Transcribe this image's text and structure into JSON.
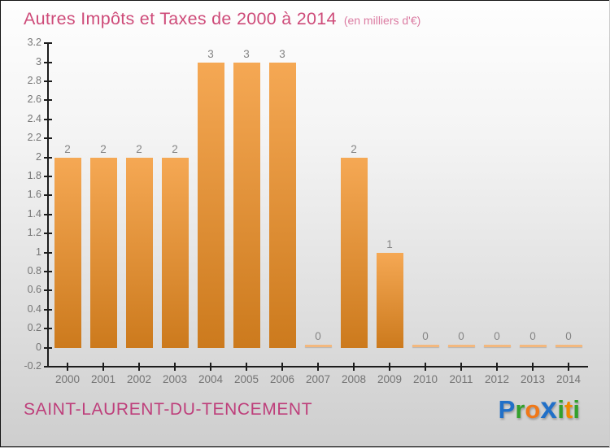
{
  "title": "Autres Impôts et Taxes de 2000 à 2014",
  "subtitle": "(en milliers d'€)",
  "chart_data": {
    "type": "bar",
    "title": "Autres Impôts et Taxes de 2000 à 2014",
    "subtitle": "(en milliers d'€)",
    "categories": [
      "2000",
      "2001",
      "2002",
      "2003",
      "2004",
      "2005",
      "2006",
      "2007",
      "2008",
      "2009",
      "2010",
      "2011",
      "2012",
      "2013",
      "2014"
    ],
    "values": [
      2,
      2,
      2,
      2,
      3,
      3,
      3,
      0,
      2,
      1,
      0,
      0,
      0,
      0,
      0
    ],
    "bar_value_labels": [
      "2",
      "2",
      "2",
      "2",
      "3",
      "3",
      "3",
      "0",
      "2",
      "1",
      "0",
      "0",
      "0",
      "0",
      "0"
    ],
    "xlabel": "",
    "ylabel": "",
    "ylim": [
      -0.2,
      3.2
    ],
    "y_tick_step": 0.2,
    "y_ticks": [
      "-0.2",
      "0",
      "0.2",
      "0.4",
      "0.6",
      "0.8",
      "1",
      "1.2",
      "1.4",
      "1.6",
      "1.8",
      "2",
      "2.2",
      "2.4",
      "2.6",
      "2.8",
      "3",
      "3.2"
    ],
    "grid": false,
    "legend": null
  },
  "footer": {
    "location": "SAINT-LAURENT-DU-TENCEMENT",
    "logo_letters": [
      {
        "char": "P",
        "color": "#2170C8",
        "big": false
      },
      {
        "char": "r",
        "color": "#33A02C",
        "big": false
      },
      {
        "char": "o",
        "color": "#F07818",
        "big": false
      },
      {
        "char": "x",
        "color": "#2170C8",
        "big": true
      },
      {
        "char": "i",
        "color": "#33A02C",
        "big": false
      },
      {
        "char": "t",
        "color": "#F08A00",
        "big": false
      },
      {
        "char": "i",
        "color": "#33A02C",
        "big": false
      }
    ]
  },
  "colors": {
    "title": "#CE4B79",
    "subtitle": "#DB7CA2",
    "location": "#BE3F7B",
    "bar_top": "#F5A854",
    "bar_bottom": "#CC7A1D",
    "zero_bar": "#F3B87E",
    "axis": "#1C1C1C",
    "value_label": "#858585",
    "tick_label": "#747474",
    "background_top": "#FDFDFD",
    "background_bottom": "#CACACA"
  }
}
